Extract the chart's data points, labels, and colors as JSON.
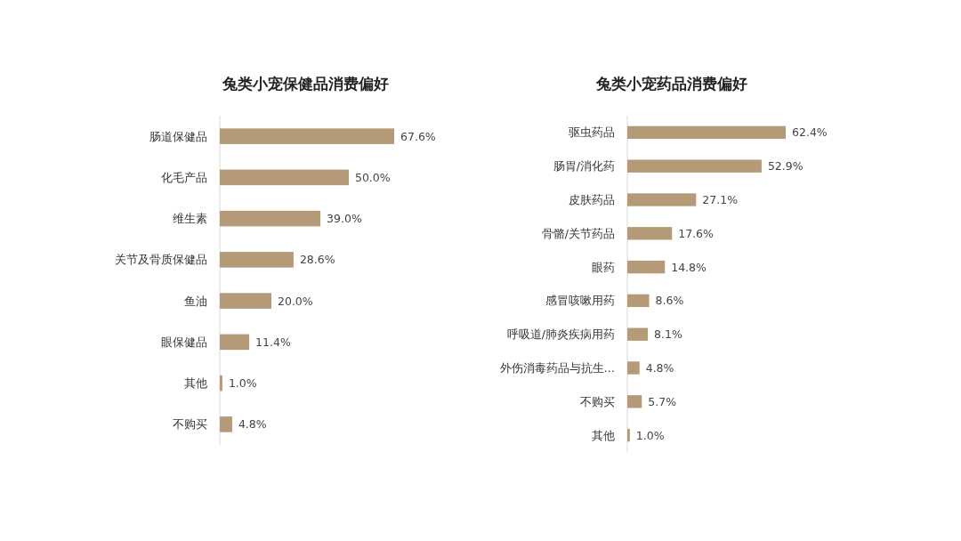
{
  "chart_data": [
    {
      "type": "bar",
      "orientation": "horizontal",
      "title": "兔类小宠保健品消费偏好",
      "categories": [
        "肠道保健品",
        "化毛产品",
        "维生素",
        "关节及骨质保健品",
        "鱼油",
        "眼保健品",
        "其他",
        "不购买"
      ],
      "values": [
        67.6,
        50.0,
        39.0,
        28.6,
        20.0,
        11.4,
        1.0,
        4.8
      ],
      "value_labels": [
        "67.6%",
        "50.0%",
        "39.0%",
        "28.6%",
        "20.0%",
        "11.4%",
        "1.0%",
        "4.8%"
      ],
      "color": "#b59a78"
    },
    {
      "type": "bar",
      "orientation": "horizontal",
      "title": "兔类小宠药品消费偏好",
      "categories": [
        "驱虫药品",
        "肠胃/消化药",
        "皮肤药品",
        "骨骼/关节药品",
        "眼药",
        "感冒咳嗽用药",
        "呼吸道/肺炎疾病用药",
        "外伤消毒药品与抗生…",
        "不购买",
        "其他"
      ],
      "values": [
        62.4,
        52.9,
        27.1,
        17.6,
        14.8,
        8.6,
        8.1,
        4.8,
        5.7,
        1.0
      ],
      "value_labels": [
        "62.4%",
        "52.9%",
        "27.1%",
        "17.6%",
        "14.8%",
        "8.6%",
        "8.1%",
        "4.8%",
        "5.7%",
        "1.0%"
      ],
      "color": "#b59a78"
    }
  ]
}
